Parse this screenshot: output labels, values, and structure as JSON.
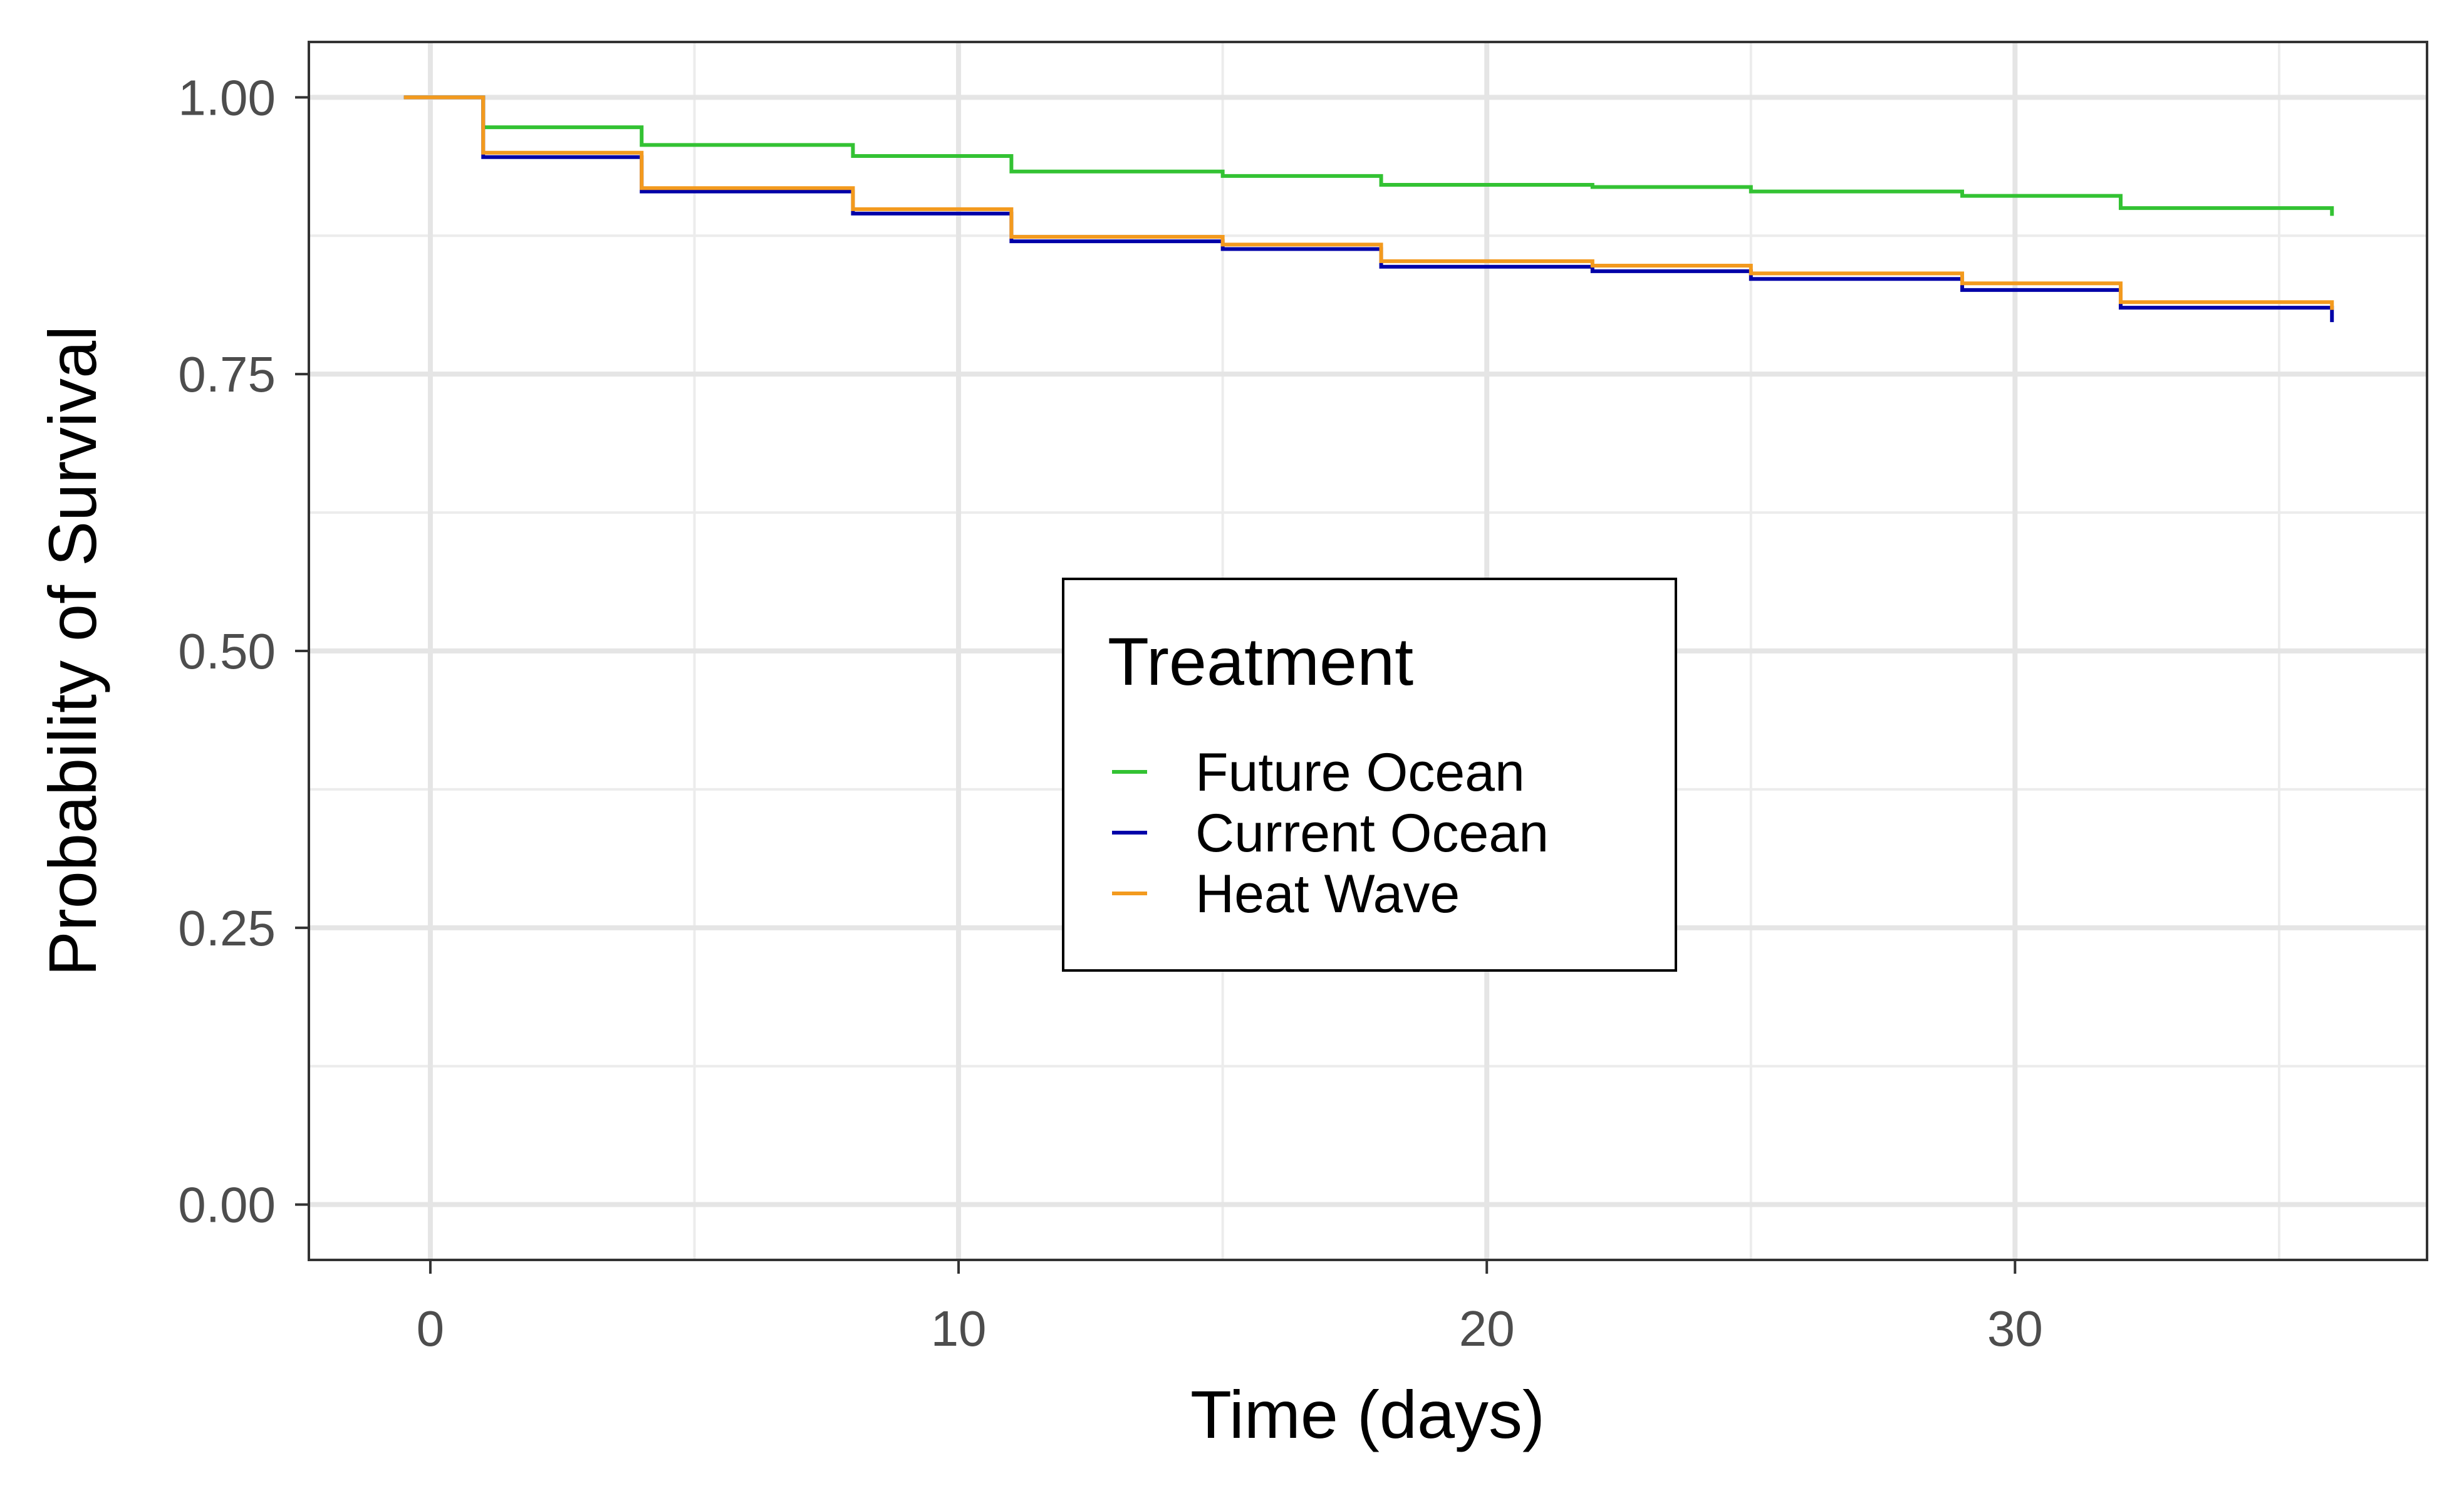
{
  "chart_data": {
    "type": "line",
    "step": true,
    "title": "",
    "xlabel": "Time (days)",
    "ylabel": "Probability of Survival",
    "xlim": [
      -2.3,
      37.8
    ],
    "ylim": [
      -0.05,
      1.05
    ],
    "x_ticks": [
      0,
      10,
      20,
      30
    ],
    "x_tick_labels": [
      "0",
      "10",
      "20",
      "30"
    ],
    "x_minor_ticks": [
      5,
      15,
      25,
      35
    ],
    "y_ticks": [
      0,
      0.25,
      0.5,
      0.75,
      1.0
    ],
    "y_tick_labels": [
      "0.00",
      "0.25",
      "0.50",
      "0.75",
      "1.00"
    ],
    "y_minor_ticks": [
      0.125,
      0.375,
      0.625,
      0.875
    ],
    "grid": true,
    "legend": {
      "title": "Treatment",
      "placement": "center",
      "entries": [
        "Future Ocean",
        "Current Ocean",
        "Heat Wave"
      ]
    },
    "series": [
      {
        "name": "Future Ocean",
        "color": "#33c233",
        "x": [
          -0.5,
          1,
          4,
          8,
          11,
          15,
          18,
          22,
          25,
          29,
          32,
          36
        ],
        "y": [
          1.0,
          0.973,
          0.957,
          0.947,
          0.933,
          0.929,
          0.921,
          0.919,
          0.915,
          0.911,
          0.9,
          0.9
        ],
        "end_drop": 0.893
      },
      {
        "name": "Current Ocean",
        "color": "#0000a8",
        "x": [
          -0.5,
          1,
          4,
          8,
          11,
          15,
          18,
          22,
          25,
          29,
          32,
          36
        ],
        "y": [
          1.0,
          0.946,
          0.915,
          0.895,
          0.87,
          0.863,
          0.847,
          0.843,
          0.836,
          0.826,
          0.81,
          0.81
        ],
        "end_drop": 0.797
      },
      {
        "name": "Heat Wave",
        "color": "#f39a1e",
        "x": [
          -0.5,
          1,
          4,
          8,
          11,
          15,
          18,
          22,
          25,
          29,
          32,
          36
        ],
        "y": [
          1.0,
          0.95,
          0.918,
          0.899,
          0.874,
          0.867,
          0.852,
          0.848,
          0.841,
          0.832,
          0.815,
          0.815
        ],
        "end_drop": 0.808
      }
    ]
  }
}
